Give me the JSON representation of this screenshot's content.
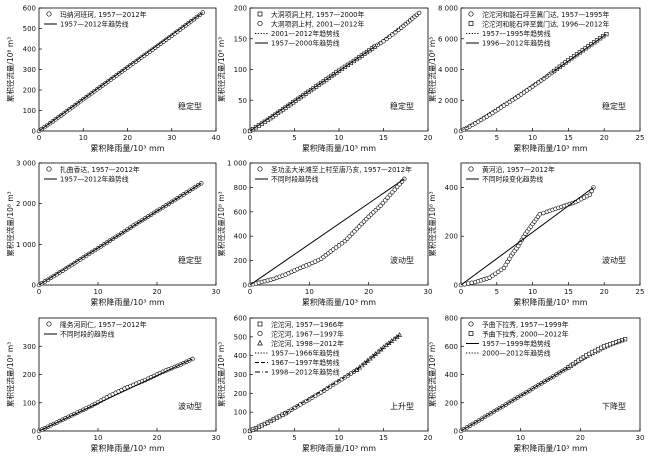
{
  "chart_data": [
    {
      "type": "line",
      "ylabel": "累积径流量/10⁸ m³",
      "xlabel": "累积降雨量/10³ mm",
      "xlim": [
        0,
        40
      ],
      "ylim": [
        0,
        600
      ],
      "xticks": [
        0,
        10,
        20,
        30,
        40
      ],
      "yticks": [
        0,
        100,
        200,
        300,
        400,
        500,
        600
      ],
      "type_label": "稳定型",
      "series": [
        {
          "name": "玛纳河班珂, 1957—2012年",
          "kind": "marker",
          "x": [
            0,
            5,
            10,
            15,
            20,
            25,
            30,
            35,
            37
          ],
          "y": [
            0,
            76,
            155,
            232,
            310,
            387,
            465,
            545,
            578
          ]
        },
        {
          "name": "1957—2012年趋势线",
          "kind": "solid",
          "x": [
            0,
            37
          ],
          "y": [
            0,
            578
          ]
        }
      ]
    },
    {
      "type": "line",
      "ylabel": "累积径流量/10⁸ m³",
      "xlabel": "累积降雨量/10³ mm",
      "xlim": [
        0,
        20
      ],
      "ylim": [
        0,
        200
      ],
      "xticks": [
        0,
        5,
        10,
        15,
        20
      ],
      "yticks": [
        0,
        50,
        100,
        150,
        200
      ],
      "type_label": "稳定型",
      "series": [
        {
          "name": "大洞项洞上村, 1957—2000年",
          "kind": "square",
          "x": [
            0,
            2,
            4,
            6,
            8,
            10,
            12,
            14
          ],
          "y": [
            0,
            18,
            38,
            58,
            78,
            98,
            117,
            137
          ]
        },
        {
          "name": "大洞项洞上村, 2001—2012年",
          "kind": "marker",
          "x": [
            14,
            15,
            16,
            17,
            18,
            19
          ],
          "y": [
            137,
            146,
            157,
            168,
            180,
            192
          ]
        },
        {
          "name": "2001—2012年趋势线",
          "kind": "dotted",
          "x": [
            14,
            19
          ],
          "y": [
            137,
            192
          ]
        },
        {
          "name": "1957—2000年趋势线",
          "kind": "solid",
          "x": [
            0,
            14
          ],
          "y": [
            0,
            137
          ]
        }
      ]
    },
    {
      "type": "line",
      "ylabel": "累积径流量/10⁸ m³",
      "xlabel": "累积降雨量/10³ mm",
      "xlim": [
        0,
        25
      ],
      "ylim": [
        0,
        8000
      ],
      "xticks": [
        0,
        5,
        10,
        15,
        20,
        25
      ],
      "yticks": [
        0,
        2000,
        4000,
        6000,
        8000
      ],
      "type_label": "稳定型",
      "series": [
        {
          "name": "沱沱河和能石坪至冀门达, 1957—1995年",
          "kind": "marker",
          "x": [
            0,
            2,
            4,
            6,
            8,
            10,
            12,
            13
          ],
          "y": [
            0,
            500,
            1050,
            1650,
            2250,
            2900,
            3550,
            3900
          ]
        },
        {
          "name": "沱沱河和能石坪至冀门达, 1996—2012年",
          "kind": "square",
          "x": [
            13,
            15,
            17,
            19,
            20.3
          ],
          "y": [
            3900,
            4600,
            5250,
            5900,
            6300
          ]
        },
        {
          "name": "1957—1995年趋势线",
          "kind": "dotted",
          "x": [
            0,
            13
          ],
          "y": [
            0,
            3900
          ]
        },
        {
          "name": "1996—2012年趋势线",
          "kind": "solid",
          "x": [
            13,
            20.3
          ],
          "y": [
            3900,
            6300
          ]
        }
      ]
    },
    {
      "type": "line",
      "ylabel": "累积径流量/10⁸ m³",
      "xlabel": "累积降雨量/10³ mm",
      "xlim": [
        0,
        30
      ],
      "ylim": [
        0,
        3000
      ],
      "xticks": [
        0,
        10,
        20,
        30
      ],
      "yticks": [
        0,
        1000,
        2000,
        3000
      ],
      "type_label": "稳定型",
      "series": [
        {
          "name": "扎曲香达, 1957—2012年",
          "kind": "marker",
          "x": [
            0,
            4,
            8,
            12,
            16,
            20,
            24,
            27.5
          ],
          "y": [
            0,
            350,
            720,
            1090,
            1460,
            1820,
            2180,
            2500
          ]
        },
        {
          "name": "1957—2012年趋势线",
          "kind": "solid",
          "x": [
            0,
            27.5
          ],
          "y": [
            0,
            2500
          ]
        }
      ]
    },
    {
      "type": "line",
      "ylabel": "累积径流量/10⁸ m³",
      "xlabel": "累积降雨量/10³ mm",
      "xlim": [
        0,
        30
      ],
      "ylim": [
        0,
        1000
      ],
      "xticks": [
        0,
        10,
        20,
        30
      ],
      "yticks": [
        0,
        200,
        400,
        600,
        800,
        1000
      ],
      "type_label": "波动型",
      "series": [
        {
          "name": "圣功孟大米滩至上村至唐乃亥, 1957—2012年",
          "kind": "marker",
          "x": [
            0,
            2,
            4,
            6,
            8,
            10,
            12,
            14,
            16,
            18,
            20,
            22,
            24,
            26
          ],
          "y": [
            0,
            25,
            50,
            85,
            130,
            170,
            215,
            290,
            360,
            460,
            560,
            650,
            760,
            870
          ]
        },
        {
          "name": "不同时段趋势线",
          "kind": "solid",
          "x": [
            0,
            26
          ],
          "y": [
            0,
            870
          ]
        }
      ]
    },
    {
      "type": "line",
      "ylabel": "累积径流量/10⁸ m³",
      "xlabel": "累积降雨量/10³ mm",
      "xlim": [
        0,
        25
      ],
      "ylim": [
        0,
        500
      ],
      "xticks": [
        0,
        5,
        10,
        15,
        20,
        25
      ],
      "yticks": [
        0,
        200,
        400
      ],
      "type_label": "波动型",
      "series": [
        {
          "name": "黄河沿, 1957—2012年",
          "kind": "marker",
          "x": [
            0,
            2,
            4,
            6,
            7,
            8,
            9,
            10,
            11,
            12,
            14,
            16,
            18,
            18.5
          ],
          "y": [
            0,
            12,
            30,
            70,
            120,
            160,
            210,
            250,
            290,
            300,
            320,
            340,
            370,
            400
          ]
        },
        {
          "name": "不同时段变化趋势线",
          "kind": "solid",
          "x": [
            0,
            18.5
          ],
          "y": [
            0,
            400
          ]
        }
      ]
    },
    {
      "type": "line",
      "ylabel": "累积径流量/10⁸ m³",
      "xlabel": "累积降雨量/10³ mm",
      "xlim": [
        0,
        30
      ],
      "ylim": [
        0,
        400
      ],
      "xticks": [
        0,
        10,
        20,
        30
      ],
      "yticks": [
        0,
        100,
        200,
        300
      ],
      "type_label": "波动型",
      "series": [
        {
          "name": "隆务河同仁, 1957—2012年",
          "kind": "marker",
          "x": [
            0,
            3,
            6,
            9,
            12,
            15,
            18,
            21,
            24,
            26
          ],
          "y": [
            0,
            30,
            60,
            90,
            125,
            155,
            180,
            210,
            235,
            255
          ]
        },
        {
          "name": "不同时段的趋势线",
          "kind": "solid",
          "x": [
            0,
            26
          ],
          "y": [
            0,
            255
          ]
        }
      ]
    },
    {
      "type": "line",
      "ylabel": "累积径流量/10⁸ m³",
      "xlabel": "累积降雨量/10³ mm",
      "xlim": [
        0,
        20
      ],
      "ylim": [
        0,
        600
      ],
      "xticks": [
        0,
        5,
        10,
        15,
        20
      ],
      "yticks": [
        0,
        100,
        200,
        300,
        400,
        500,
        600
      ],
      "type_label": "上升型",
      "series": [
        {
          "name": "沱沱河, 1957—1966年",
          "kind": "square",
          "x": [
            0,
            2,
            4
          ],
          "y": [
            0,
            45,
            95
          ]
        },
        {
          "name": "沱沱河, 1967—1997年",
          "kind": "marker",
          "x": [
            4,
            6,
            8,
            10,
            12
          ],
          "y": [
            95,
            150,
            205,
            265,
            325
          ]
        },
        {
          "name": "沱沱河, 1998—2012年",
          "kind": "triangle",
          "x": [
            12,
            13.5,
            15,
            16.8
          ],
          "y": [
            325,
            385,
            445,
            510
          ]
        },
        {
          "name": "1957—1966年趋势线",
          "kind": "dotted",
          "x": [
            0,
            4
          ],
          "y": [
            0,
            95
          ]
        },
        {
          "name": "1967—1997年趋势线",
          "kind": "dashed",
          "x": [
            4,
            12
          ],
          "y": [
            95,
            325
          ]
        },
        {
          "name": "1998—2012年趋势线",
          "kind": "dashdot",
          "x": [
            12,
            16.8
          ],
          "y": [
            325,
            510
          ]
        }
      ]
    },
    {
      "type": "line",
      "ylabel": "累积径流量/10⁸ m³",
      "xlabel": "累积降雨量/10³ mm",
      "xlim": [
        0,
        30
      ],
      "ylim": [
        0,
        800
      ],
      "xticks": [
        0,
        10,
        20,
        30
      ],
      "yticks": [
        0,
        200,
        400,
        600,
        800
      ],
      "type_label": "下降型",
      "series": [
        {
          "name": "予曲下拉秀, 1957—1999年",
          "kind": "marker",
          "x": [
            0,
            3,
            6,
            9,
            12,
            15,
            18
          ],
          "y": [
            0,
            75,
            150,
            225,
            300,
            375,
            450
          ]
        },
        {
          "name": "予曲下拉秀, 2000—2012年",
          "kind": "square",
          "x": [
            18,
            21,
            24,
            27.5
          ],
          "y": [
            450,
            535,
            600,
            650
          ]
        },
        {
          "name": "1957—1999年趋势线",
          "kind": "solid",
          "x": [
            0,
            18
          ],
          "y": [
            0,
            450
          ]
        },
        {
          "name": "2000—2012年趋势线",
          "kind": "dotted",
          "x": [
            18,
            27.5
          ],
          "y": [
            450,
            650
          ]
        }
      ]
    }
  ]
}
